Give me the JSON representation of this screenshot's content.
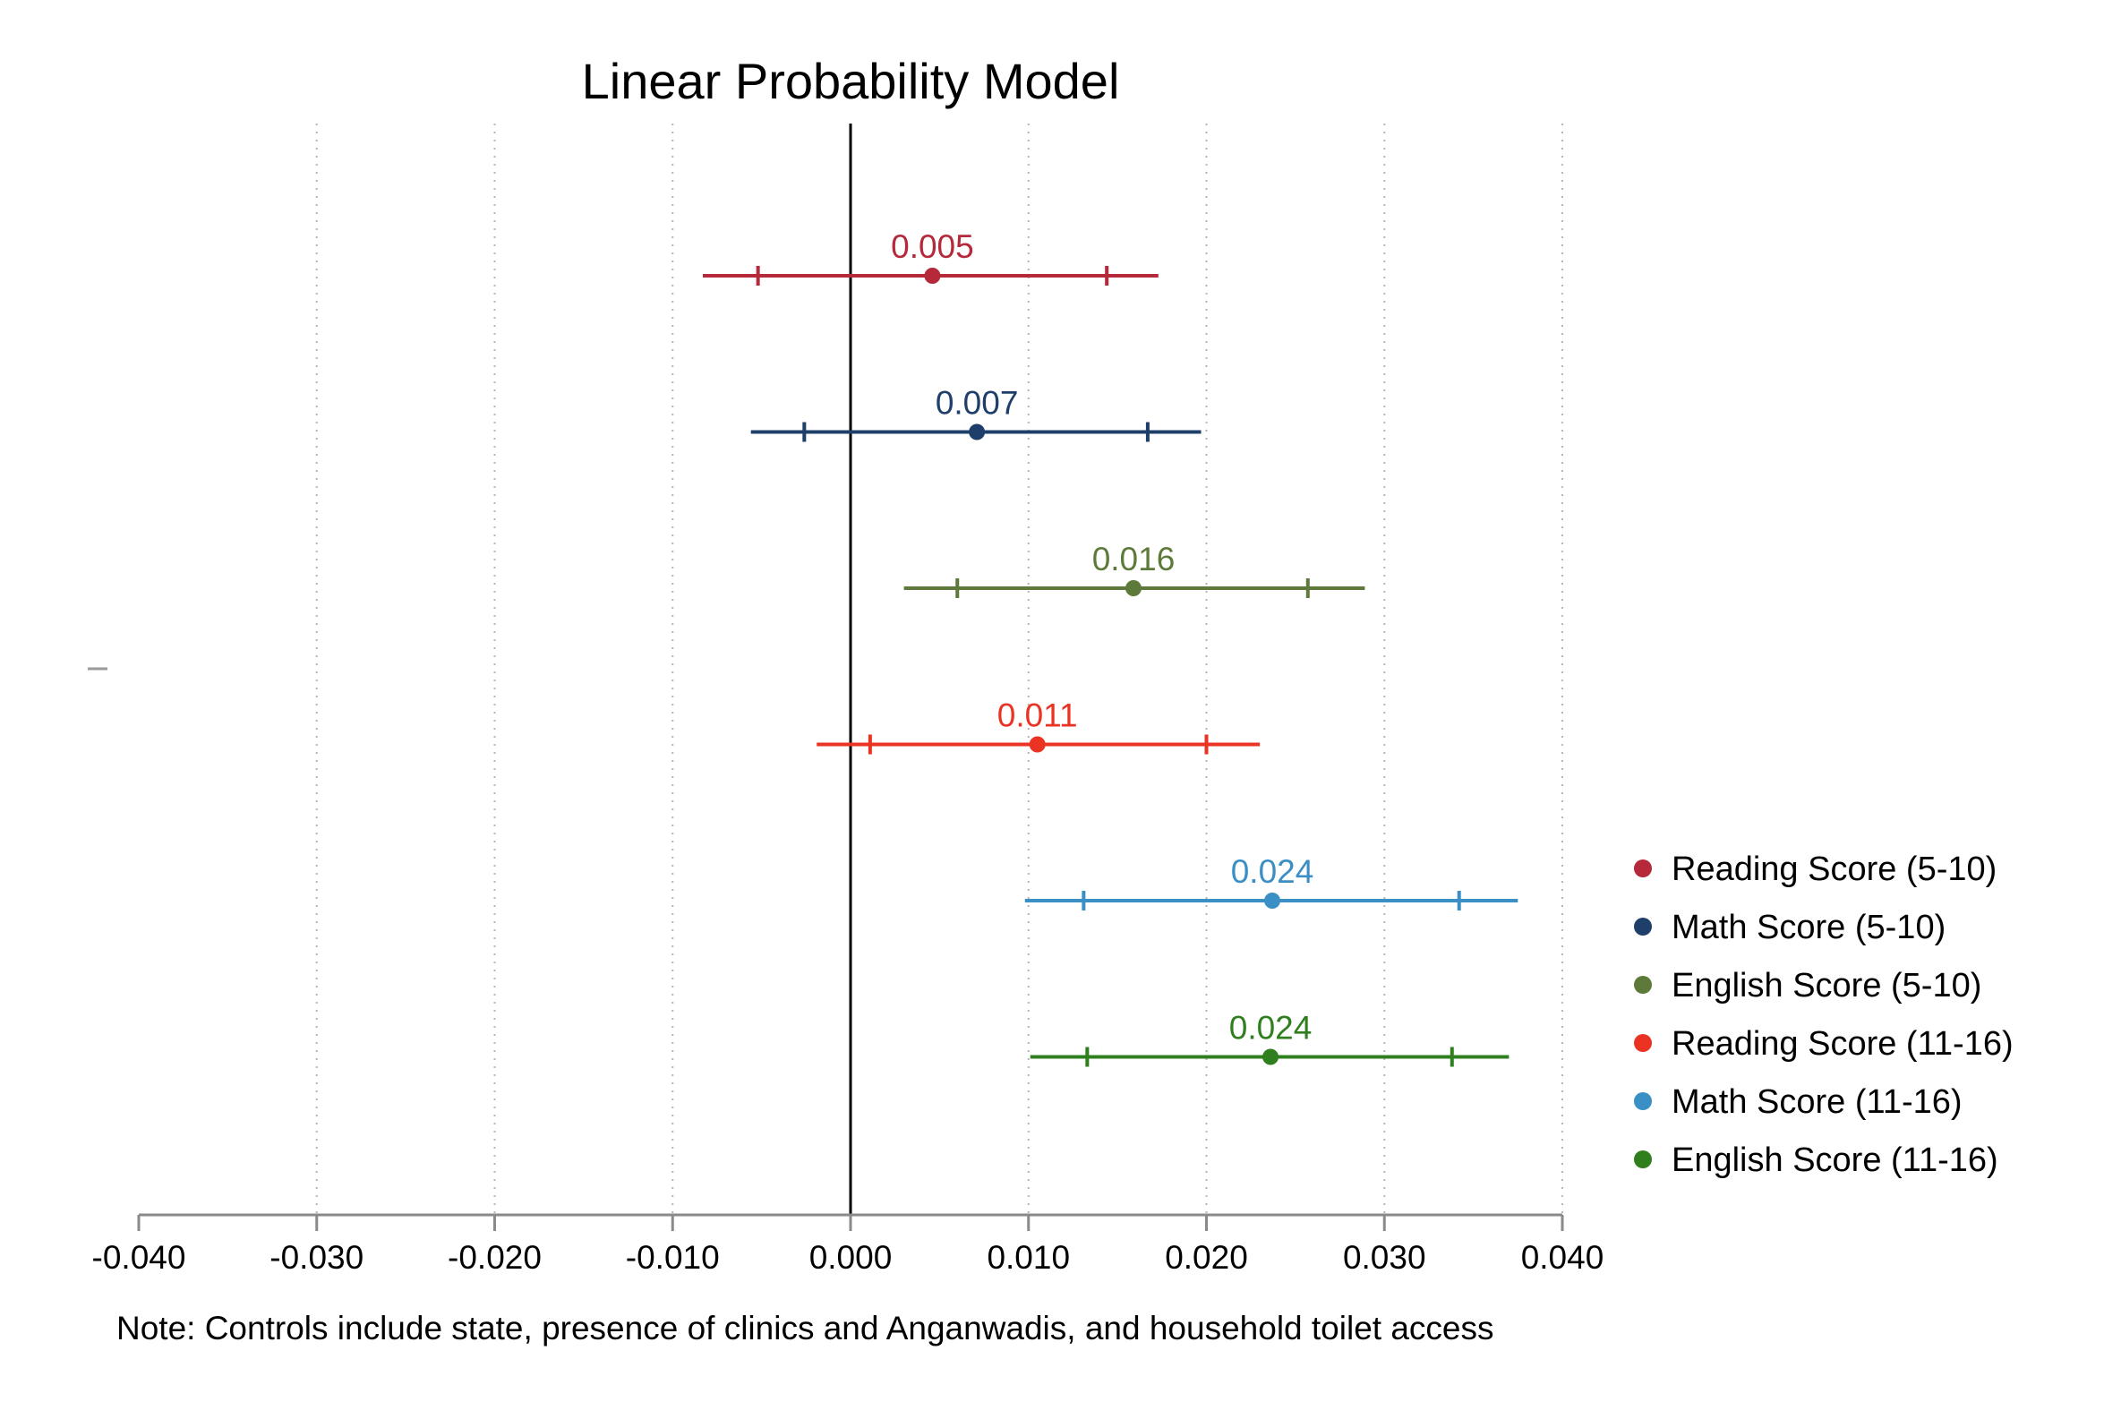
{
  "chart_data": {
    "type": "scatter",
    "subtype": "coefficient-plot-with-confidence-intervals",
    "title": "Linear Probability Model",
    "note": "Note: Controls include state, presence of clinics and Anganwadis, and household toilet access",
    "xlim": [
      -0.04,
      0.04
    ],
    "x_ticks": [
      -0.04,
      -0.03,
      -0.02,
      -0.01,
      0.0,
      0.01,
      0.02,
      0.03,
      0.04
    ],
    "x_tick_labels": [
      "-0.040",
      "-0.030",
      "-0.020",
      "-0.010",
      "0.000",
      "0.010",
      "0.020",
      "0.030",
      "0.040"
    ],
    "reference_line_x": 0,
    "grid": "vertical dotted",
    "legend_position": "right",
    "series": [
      {
        "name": "Reading Score (5-10)",
        "label": "0.005",
        "estimate": 0.0046,
        "ci_outer": [
          -0.0083,
          0.0173
        ],
        "ci_inner": [
          -0.0052,
          0.0144
        ],
        "color": "#b5293a"
      },
      {
        "name": "Math Score (5-10)",
        "label": "0.007",
        "estimate": 0.0071,
        "ci_outer": [
          -0.0056,
          0.0197
        ],
        "ci_inner": [
          -0.0026,
          0.0167
        ],
        "color": "#1f3f6b"
      },
      {
        "name": "English Score (5-10)",
        "label": "0.016",
        "estimate": 0.0159,
        "ci_outer": [
          0.003,
          0.0289
        ],
        "ci_inner": [
          0.006,
          0.0257
        ],
        "color": "#5e7a3a"
      },
      {
        "name": "Reading Score (11-16)",
        "label": "0.011",
        "estimate": 0.0105,
        "ci_outer": [
          -0.0019,
          0.023
        ],
        "ci_inner": [
          0.0011,
          0.02
        ],
        "color": "#ea3323"
      },
      {
        "name": "Math Score (11-16)",
        "label": "0.024",
        "estimate": 0.0237,
        "ci_outer": [
          0.0098,
          0.0375
        ],
        "ci_inner": [
          0.0131,
          0.0342
        ],
        "color": "#3a8fc4"
      },
      {
        "name": "English Score (11-16)",
        "label": "0.024",
        "estimate": 0.0236,
        "ci_outer": [
          0.0101,
          0.037
        ],
        "ci_inner": [
          0.0133,
          0.0338
        ],
        "color": "#2f7f1f"
      }
    ]
  }
}
